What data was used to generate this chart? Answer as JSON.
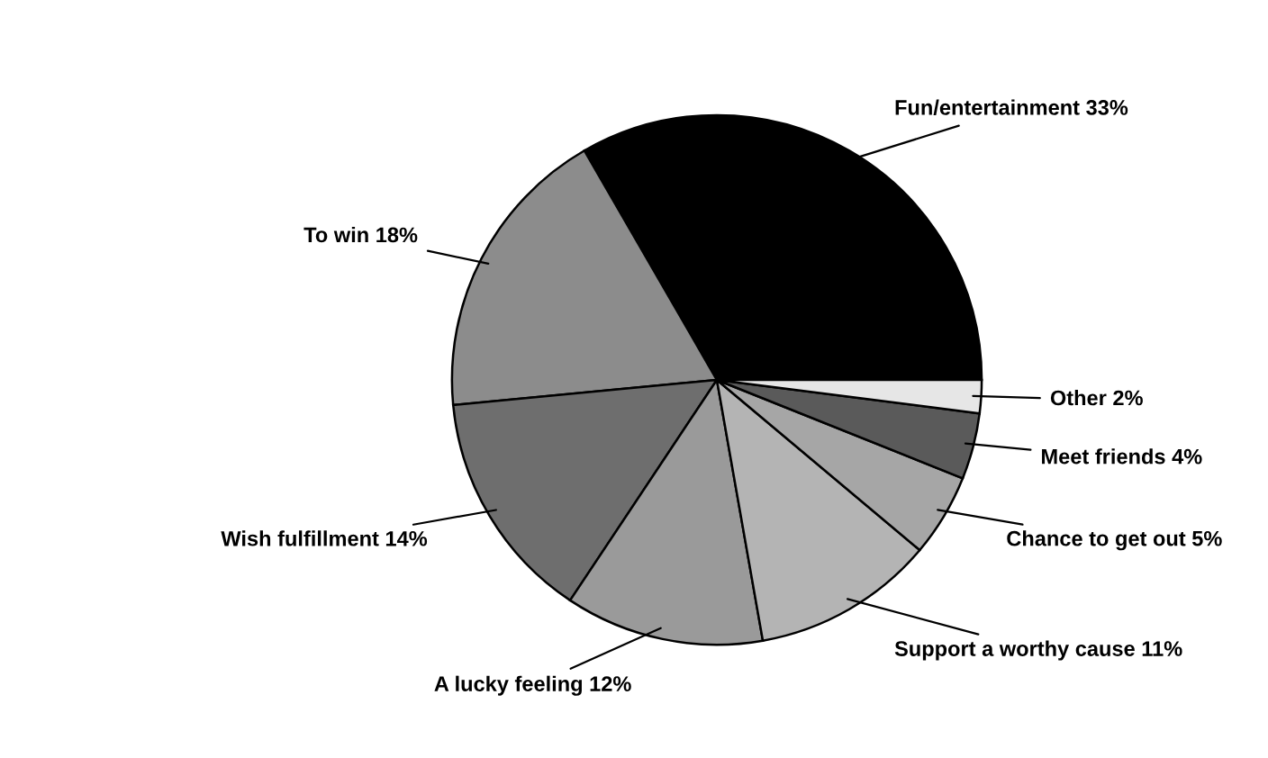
{
  "chart_data": {
    "type": "pie",
    "categories": [
      "Fun/entertainment",
      "To win",
      "Wish fulfillment",
      "A lucky feeling",
      "Support a worthy cause",
      "Chance to get out",
      "Meet friends",
      "Other"
    ],
    "values": [
      33,
      18,
      14,
      12,
      11,
      5,
      4,
      2
    ],
    "value_labels": [
      "33%",
      "18%",
      "14%",
      "12%",
      "11%",
      "5%",
      "4%",
      "2%"
    ],
    "colors": [
      "#000000",
      "#8c8c8c",
      "#6e6e6e",
      "#9a9a9a",
      "#b4b4b4",
      "#a6a6a6",
      "#5a5a5a",
      "#e6e6e6"
    ]
  }
}
